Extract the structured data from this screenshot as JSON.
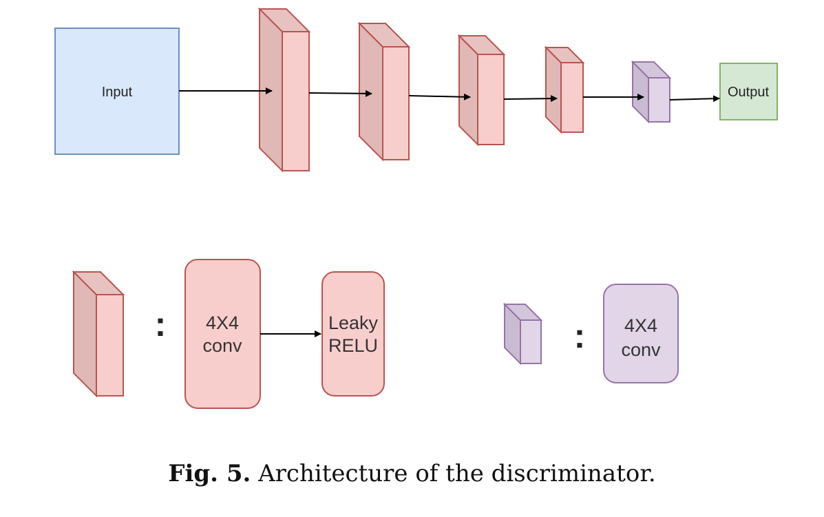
{
  "diagram": {
    "input_label": "Input",
    "output_label": "Output",
    "colors": {
      "input_fill": "#dae8fc",
      "input_stroke": "#6c8ebf",
      "output_fill": "#d5e8d4",
      "output_stroke": "#82b366",
      "conv_front": "#f8cecc",
      "conv_side": "#e0b8b6",
      "conv_stroke": "#b85450",
      "final_front": "#e1d5e7",
      "final_side": "#c9bcd2",
      "final_stroke": "#9673a6"
    }
  },
  "legend": {
    "separator": ":",
    "conv_block": {
      "step1_line1": "4X4",
      "step1_line2": "conv",
      "step2_line1": "Leaky",
      "step2_line2": "RELU"
    },
    "final_block": {
      "step1_line1": "4X4",
      "step1_line2": "conv"
    }
  },
  "caption": {
    "fig_number": "Fig. 5.",
    "text": "Architecture of the discriminator."
  }
}
